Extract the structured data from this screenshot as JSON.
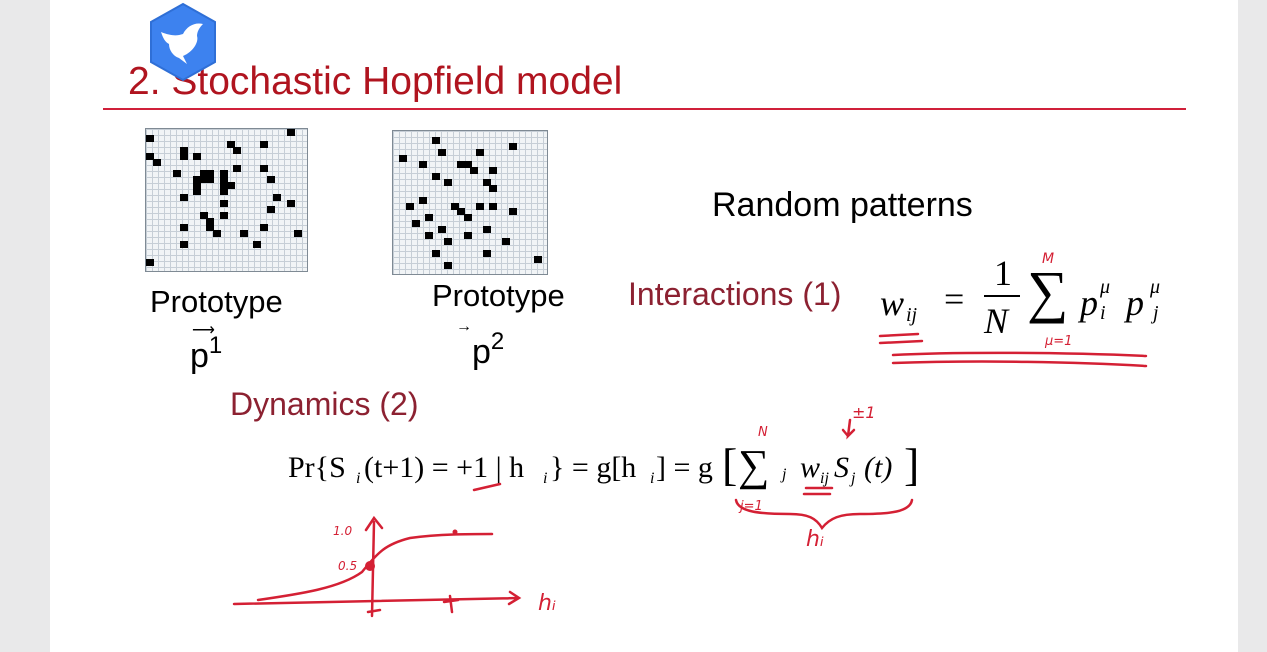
{
  "slide": {
    "title": "2. Stochastic Hopfield model",
    "prototype1": {
      "label": "Prototype",
      "vector_symbol": "p",
      "vector_index": "1"
    },
    "prototype2": {
      "label": "Prototype",
      "vector_symbol": "p",
      "vector_index": "2"
    },
    "random_patterns": "Random patterns",
    "interactions_label": "Interactions (1)",
    "dynamics_label": "Dynamics (2)",
    "interactions_formula": {
      "lhs": "w",
      "lhs_sub": "ij",
      "equals": "=",
      "numerator": "1",
      "denominator": "N",
      "sum": "∑",
      "term1": "p",
      "term1_sup": "μ",
      "term1_sub": "i",
      "term2": "p",
      "term2_sup": "μ",
      "term2_sub": "j"
    },
    "dynamics_formula": {
      "prob": "Pr{S",
      "sub_i": "i",
      "rest1": " (t+1) = +1 | h",
      "rest2": "} = g[h",
      "rest3": "] = g",
      "lbracket": "[",
      "sum": "∑",
      "sub_j": "j",
      "w": "w",
      "w_sub": "ij",
      "s": "S",
      "s_sub": "j",
      "targ": "(t)",
      "rbracket": "]"
    }
  },
  "handwriting": {
    "upper_limit_M": "M",
    "lower_limit_mu1": "μ=1",
    "upper_limit_N": "N",
    "lower_limit_j1": "j=1",
    "pm1": "±1",
    "brace_label": "hᵢ",
    "plot_y_top": "1.0",
    "plot_y_mid": "0.5",
    "plot_x_label": "hᵢ"
  },
  "colors": {
    "title": "#b0141f",
    "title_rule": "#d0203a",
    "labels_red": "#8c2131",
    "ink": "#d42034",
    "page_bg": "#ffffff",
    "outer_bg": "#e9e9ea",
    "app_icon": "#3d82ef"
  },
  "patterns": {
    "grid_size": 24,
    "prototype1": [
      [
        1,
        0
      ],
      [
        2,
        17
      ],
      [
        0,
        21
      ],
      [
        2,
        12
      ],
      [
        3,
        13
      ],
      [
        3,
        5
      ],
      [
        4,
        0
      ],
      [
        4,
        5
      ],
      [
        4,
        7
      ],
      [
        5,
        1
      ],
      [
        6,
        13
      ],
      [
        6,
        17
      ],
      [
        7,
        4
      ],
      [
        7,
        8
      ],
      [
        7,
        9
      ],
      [
        7,
        11
      ],
      [
        8,
        7
      ],
      [
        8,
        8
      ],
      [
        8,
        9
      ],
      [
        8,
        11
      ],
      [
        8,
        18
      ],
      [
        9,
        11
      ],
      [
        9,
        12
      ],
      [
        9,
        7
      ],
      [
        10,
        7
      ],
      [
        10,
        11
      ],
      [
        11,
        5
      ],
      [
        11,
        19
      ],
      [
        12,
        11
      ],
      [
        12,
        21
      ],
      [
        13,
        18
      ],
      [
        14,
        8
      ],
      [
        14,
        11
      ],
      [
        15,
        9
      ],
      [
        16,
        5
      ],
      [
        16,
        9
      ],
      [
        16,
        17
      ],
      [
        17,
        10
      ],
      [
        17,
        14
      ],
      [
        17,
        22
      ],
      [
        19,
        5
      ],
      [
        19,
        16
      ],
      [
        22,
        0
      ]
    ],
    "prototype2": [
      [
        1,
        6
      ],
      [
        2,
        18
      ],
      [
        3,
        7
      ],
      [
        3,
        13
      ],
      [
        4,
        1
      ],
      [
        5,
        4
      ],
      [
        5,
        10
      ],
      [
        5,
        11
      ],
      [
        6,
        12
      ],
      [
        6,
        15
      ],
      [
        7,
        6
      ],
      [
        8,
        8
      ],
      [
        8,
        14
      ],
      [
        9,
        15
      ],
      [
        11,
        4
      ],
      [
        12,
        2
      ],
      [
        12,
        9
      ],
      [
        12,
        13
      ],
      [
        12,
        15
      ],
      [
        13,
        10
      ],
      [
        13,
        18
      ],
      [
        14,
        5
      ],
      [
        14,
        11
      ],
      [
        15,
        3
      ],
      [
        16,
        7
      ],
      [
        16,
        14
      ],
      [
        17,
        5
      ],
      [
        17,
        11
      ],
      [
        18,
        8
      ],
      [
        18,
        17
      ],
      [
        20,
        6
      ],
      [
        20,
        14
      ],
      [
        21,
        22
      ],
      [
        22,
        8
      ]
    ]
  }
}
